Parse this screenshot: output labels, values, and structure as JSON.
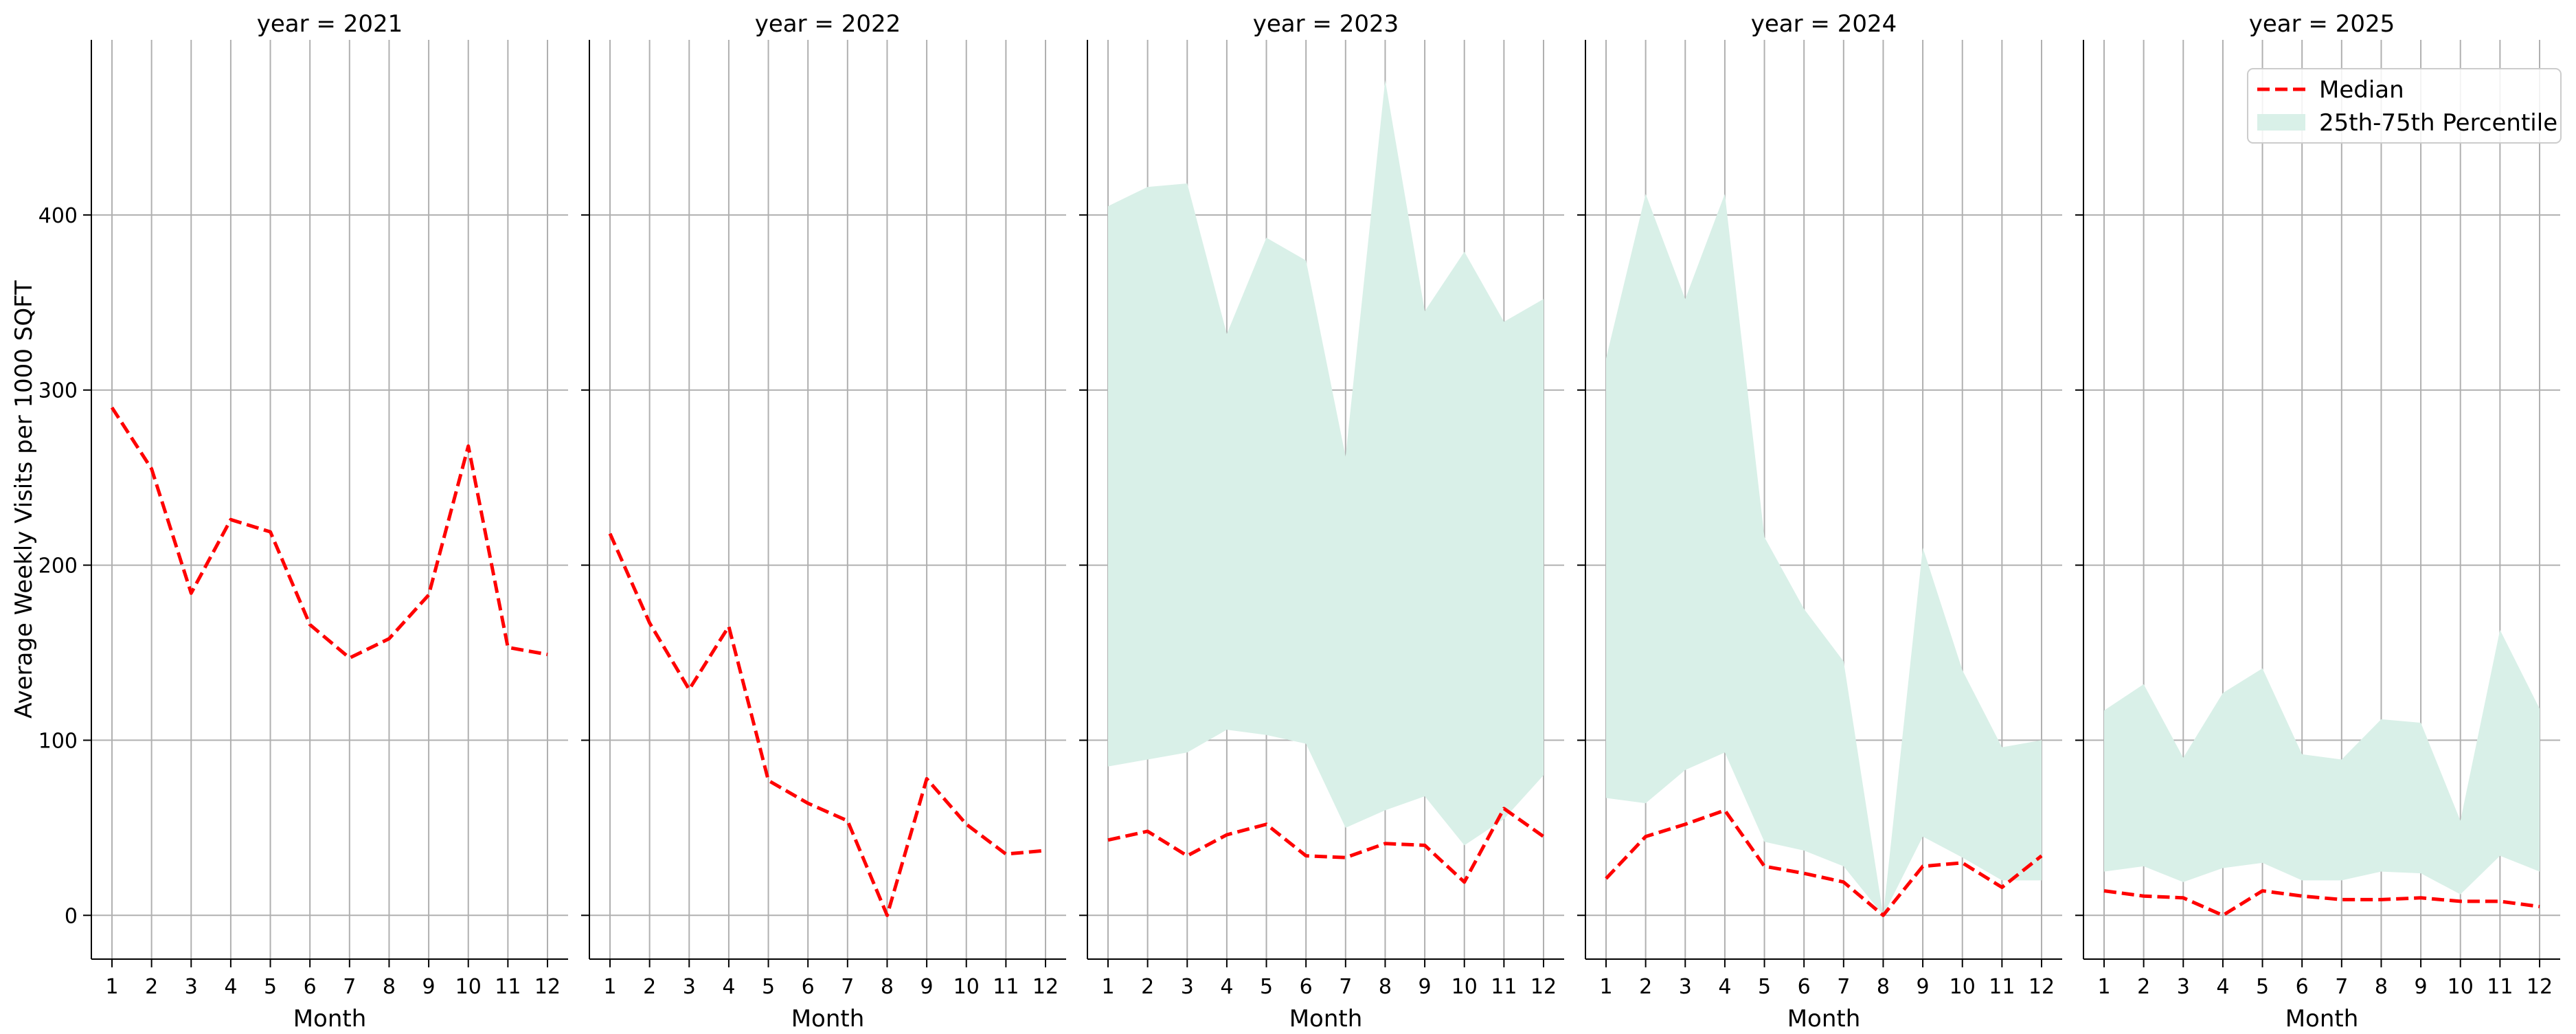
{
  "chart_data": {
    "type": "line",
    "facet_variable": "year",
    "xlabel": "Month",
    "ylabel": "Average Weekly Visits per 1000 SQFT",
    "ylim": [
      -25,
      500
    ],
    "y_ticks": [
      0,
      100,
      200,
      300,
      400
    ],
    "x": [
      1,
      2,
      3,
      4,
      5,
      6,
      7,
      8,
      9,
      10,
      11,
      12
    ],
    "grid": true,
    "legend": {
      "placement": "top-right",
      "entries": [
        {
          "label": "Median",
          "color": "#ff0000",
          "style": "dashed-line"
        },
        {
          "label": "25th-75th Percentile",
          "color": "#d9f0e8",
          "style": "filled-band"
        }
      ]
    },
    "panels": [
      {
        "title": "year = 2021",
        "median": [
          290,
          255,
          184,
          226,
          219,
          166,
          147,
          158,
          183,
          268,
          153,
          149
        ],
        "p25": null,
        "p75": null
      },
      {
        "title": "year = 2022",
        "median": [
          218,
          167,
          129,
          165,
          77,
          64,
          54,
          0,
          78,
          52,
          35,
          37
        ],
        "p25": null,
        "p75": null
      },
      {
        "title": "year = 2023",
        "median": [
          43,
          48,
          34,
          46,
          52,
          34,
          33,
          41,
          40,
          19,
          61,
          45
        ],
        "p25": [
          85,
          89,
          93,
          106,
          103,
          98,
          50,
          60,
          68,
          40,
          55,
          80
        ],
        "p75": [
          405,
          416,
          418,
          332,
          387,
          374,
          262,
          477,
          345,
          379,
          339,
          352
        ]
      },
      {
        "title": "year = 2024",
        "median": [
          21,
          45,
          52,
          60,
          28,
          24,
          19,
          0,
          28,
          30,
          16,
          34
        ],
        "p25": [
          67,
          64,
          83,
          93,
          42,
          37,
          28,
          0,
          45,
          33,
          20,
          20
        ],
        "p75": [
          318,
          412,
          352,
          412,
          216,
          175,
          145,
          0,
          210,
          140,
          96,
          100
        ]
      },
      {
        "title": "year = 2025",
        "median": [
          14,
          11,
          10,
          0,
          14,
          11,
          9,
          9,
          10,
          8,
          8,
          5
        ],
        "p25": [
          25,
          28,
          19,
          27,
          30,
          20,
          20,
          25,
          24,
          12,
          34,
          25
        ],
        "p75": [
          117,
          132,
          90,
          127,
          141,
          92,
          89,
          112,
          110,
          54,
          163,
          118
        ]
      }
    ],
    "colors": {
      "median": "#ff0000",
      "band": "#d9f0e8",
      "grid": "#b0b0b0",
      "axis": "#000000"
    }
  }
}
